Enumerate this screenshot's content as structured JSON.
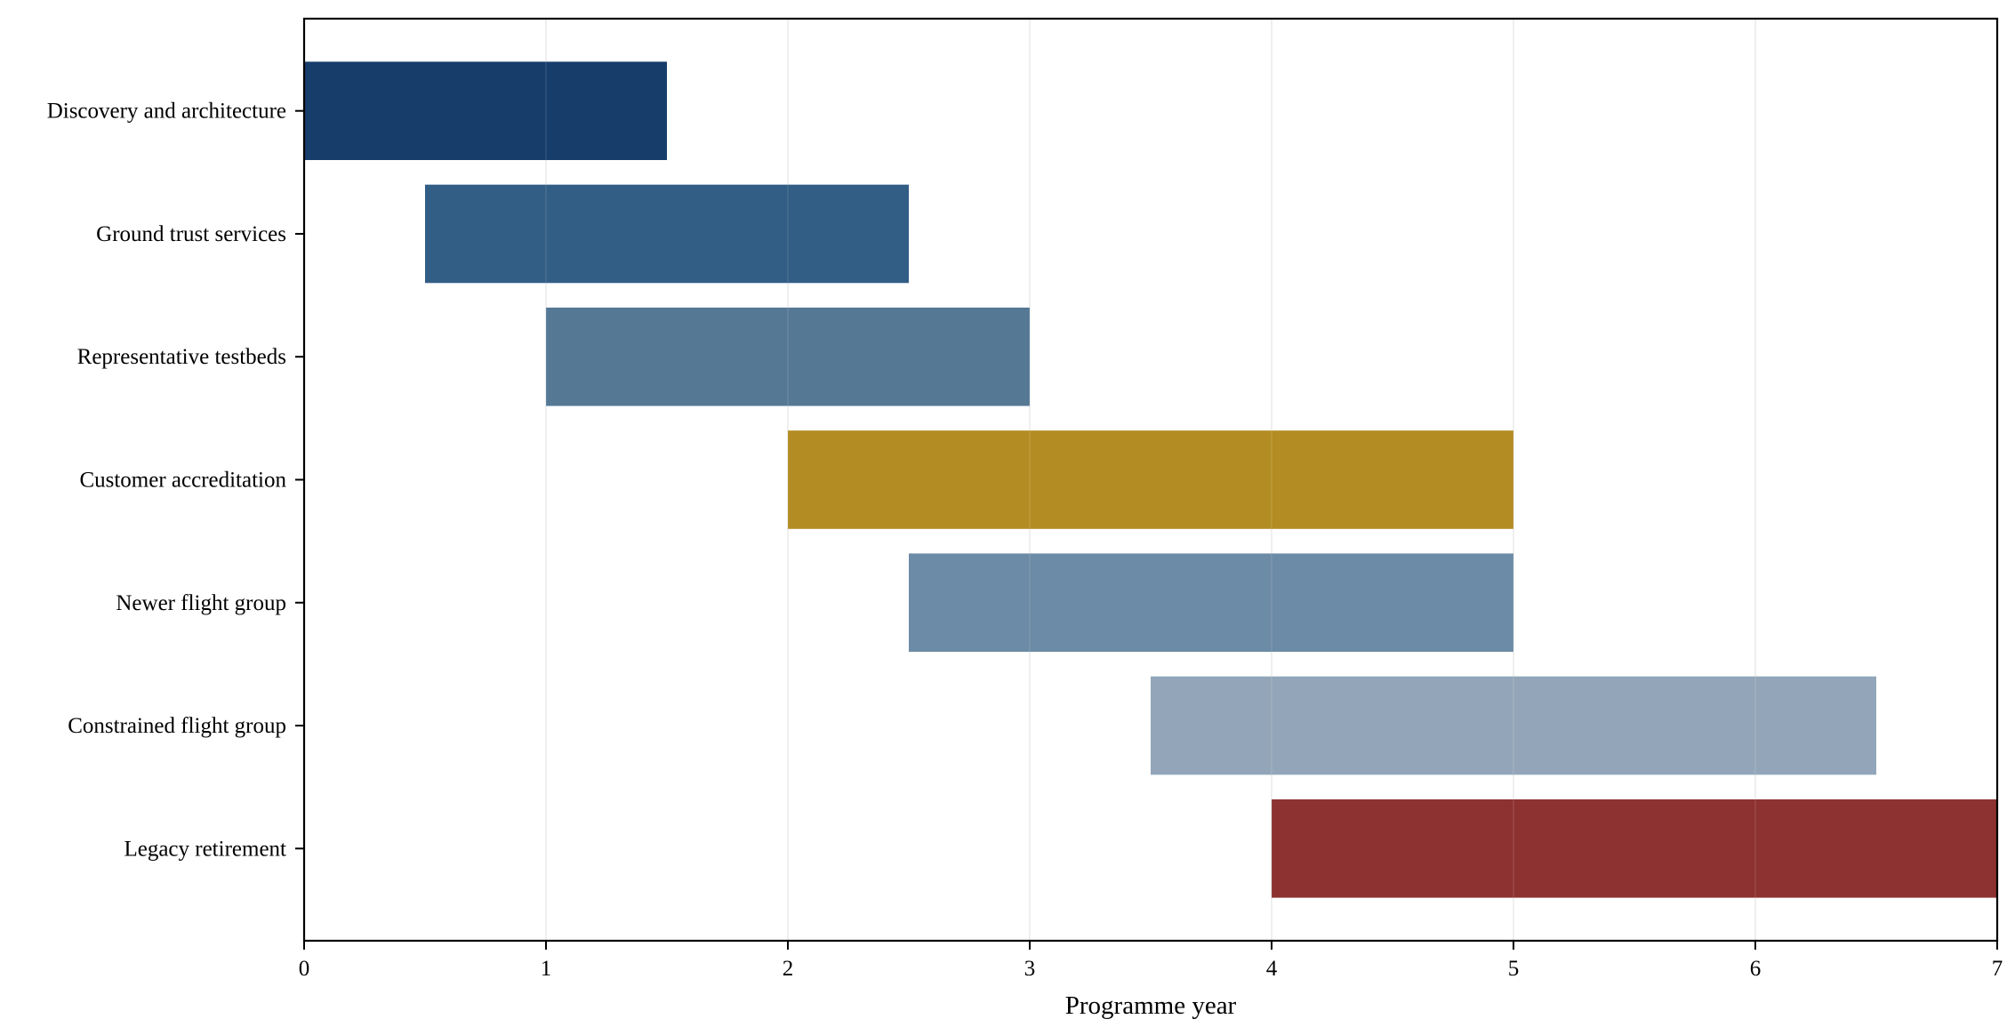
{
  "chart_data": {
    "type": "bar",
    "orientation": "horizontal",
    "subtype": "gantt",
    "title": "",
    "xlabel": "Programme year",
    "ylabel": "",
    "xlim": [
      0,
      7
    ],
    "xticks": [
      0,
      1,
      2,
      3,
      4,
      5,
      6,
      7
    ],
    "grid": "vertical",
    "legend": "none",
    "tasks": [
      {
        "name": "Discovery and architecture",
        "start": 0.0,
        "end": 1.5,
        "color": "#133a69"
      },
      {
        "name": "Ground trust services",
        "start": 0.5,
        "end": 2.5,
        "color": "#2f5a83"
      },
      {
        "name": "Representative testbeds",
        "start": 1.0,
        "end": 3.0,
        "color": "#527693"
      },
      {
        "name": "Customer accreditation",
        "start": 2.0,
        "end": 5.0,
        "color": "#b28a20"
      },
      {
        "name": "Newer flight group",
        "start": 2.5,
        "end": 5.0,
        "color": "#6a89a5"
      },
      {
        "name": "Constrained flight group",
        "start": 3.5,
        "end": 6.5,
        "color": "#91a5b8"
      },
      {
        "name": "Legacy retirement",
        "start": 4.0,
        "end": 7.0,
        "color": "#8b2f2e"
      }
    ]
  }
}
